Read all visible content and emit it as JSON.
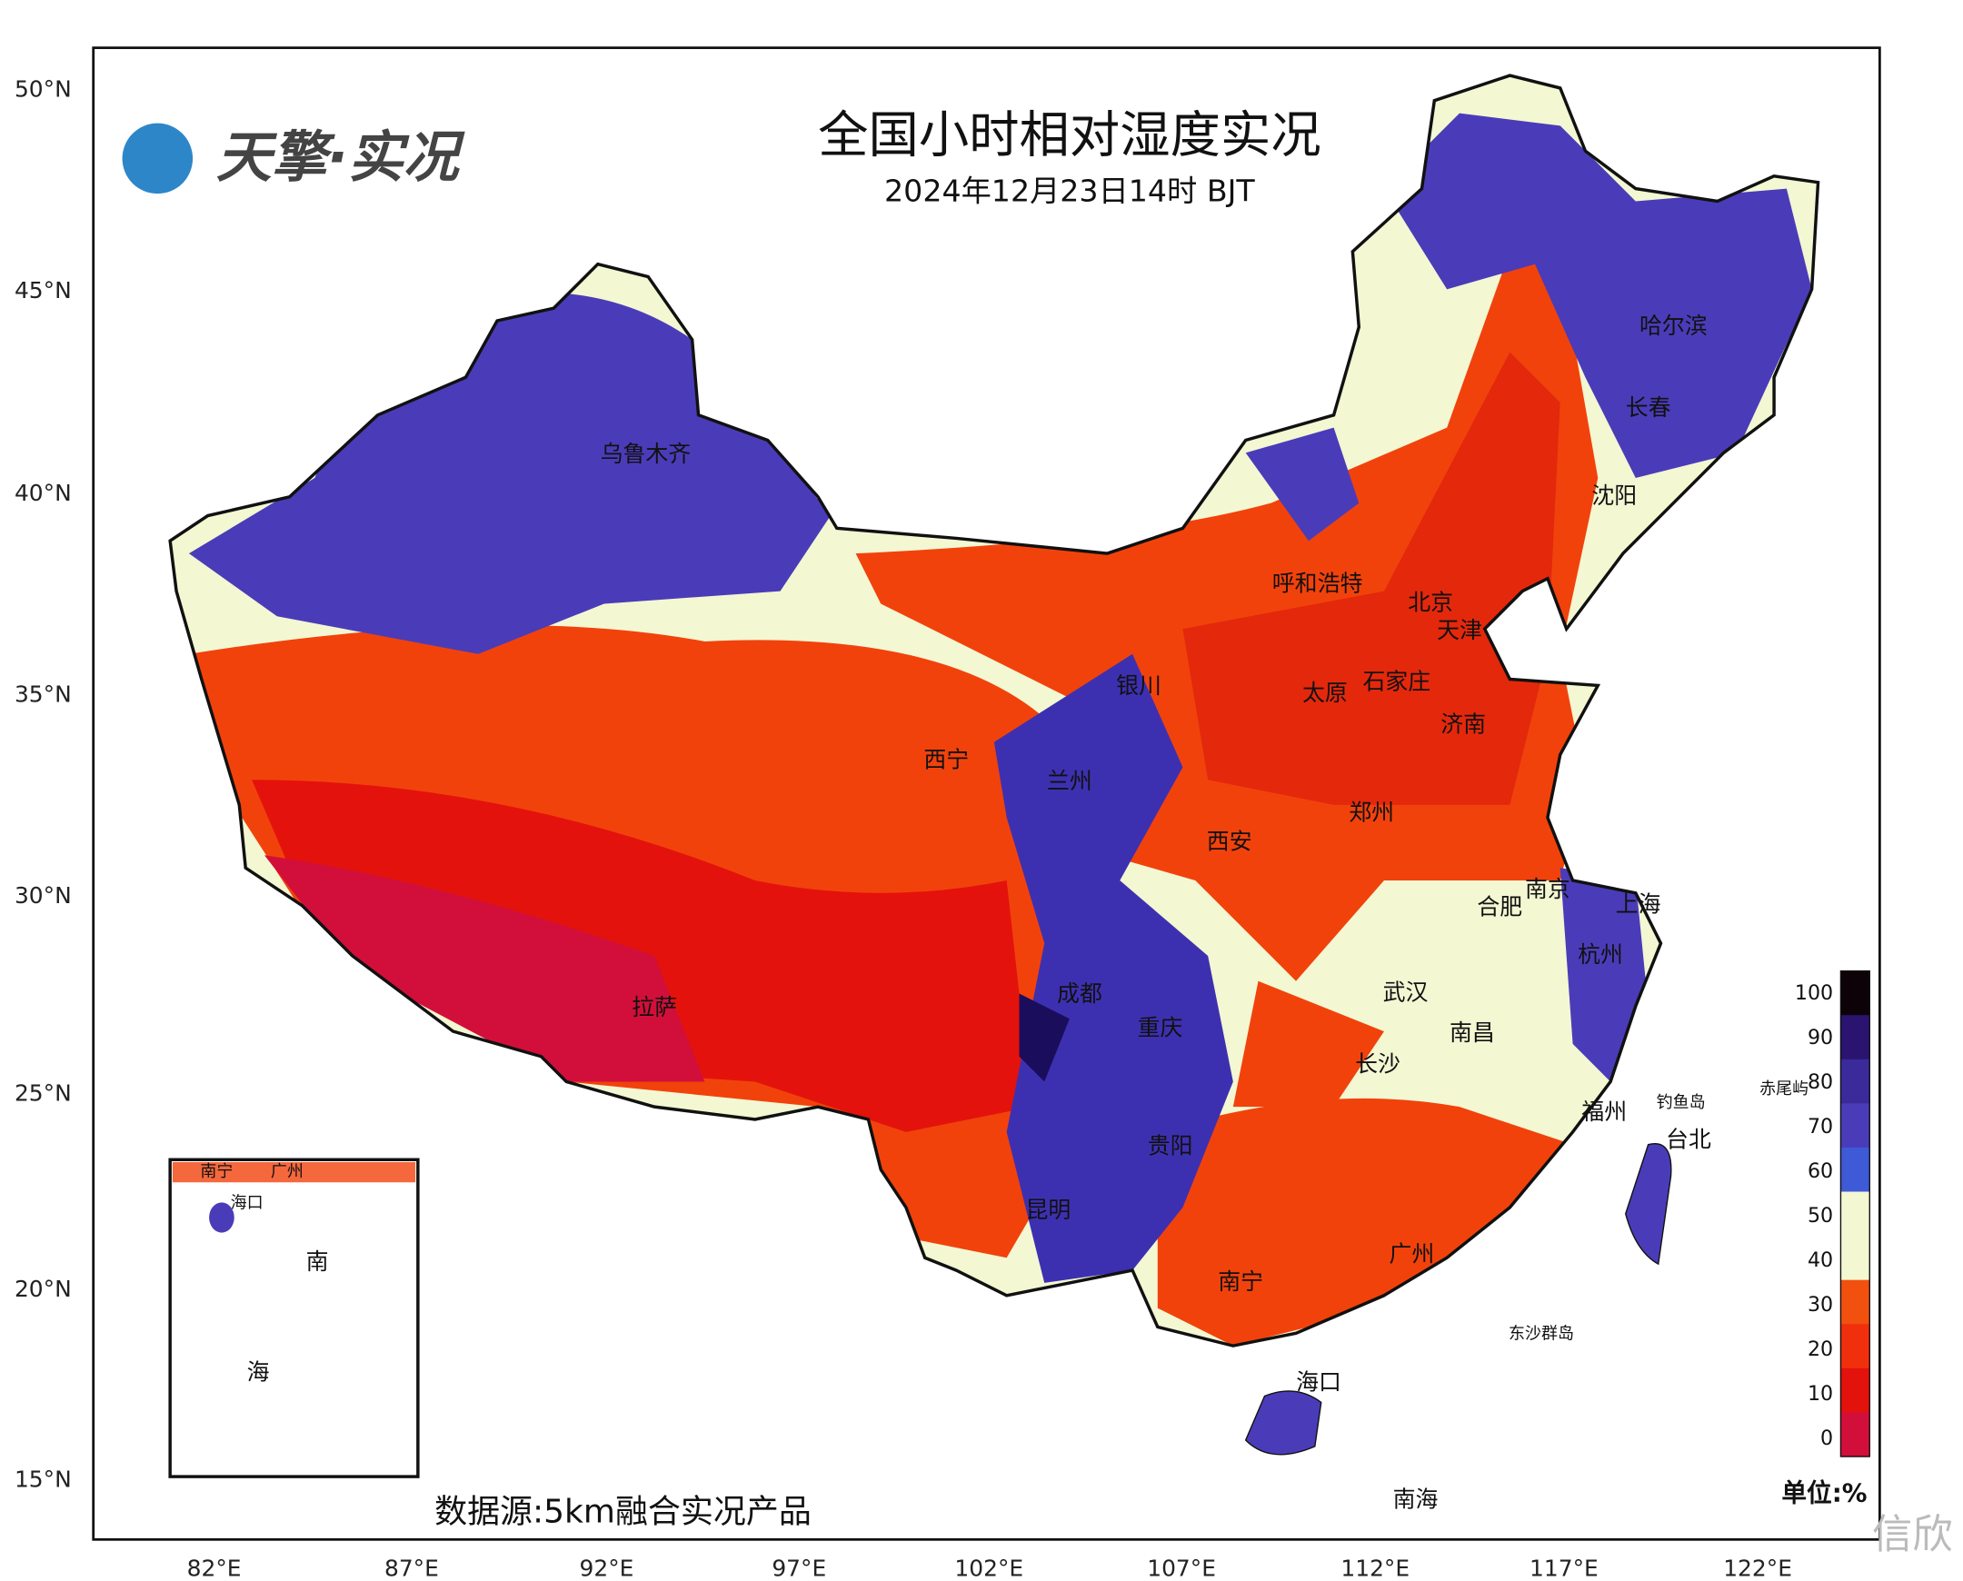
{
  "header": {
    "logo": "天擎·实况",
    "title": "全国小时相对湿度实况",
    "subtitle": "2024年12月23日14时 BJT"
  },
  "axes": {
    "latitudes": [
      "50°N",
      "45°N",
      "40°N",
      "35°N",
      "30°N",
      "25°N",
      "20°N",
      "15°N"
    ],
    "longitudes": [
      "82°E",
      "87°E",
      "92°E",
      "97°E",
      "102°E",
      "107°E",
      "112°E",
      "117°E",
      "122°E"
    ]
  },
  "cities": [
    "乌鲁木齐",
    "哈尔滨",
    "长春",
    "沈阳",
    "呼和浩特",
    "北京",
    "天津",
    "银川",
    "石家庄",
    "太原",
    "济南",
    "西宁",
    "兰州",
    "郑州",
    "西安",
    "南京",
    "合肥",
    "上海",
    "杭州",
    "武汉",
    "成都",
    "拉萨",
    "重庆",
    "南昌",
    "长沙",
    "福州",
    "钓鱼岛",
    "赤尾屿",
    "台北",
    "贵阳",
    "昆明",
    "广州",
    "南宁",
    "东沙群岛",
    "海口",
    "南海"
  ],
  "inset": {
    "labels": [
      "南宁",
      "广州",
      "海口",
      "南",
      "海"
    ]
  },
  "legend": {
    "ticks": [
      100,
      90,
      80,
      70,
      60,
      50,
      40,
      30,
      20,
      10,
      0
    ],
    "unit": "单位:%"
  },
  "footer": {
    "source": "数据源:5km融合实况产品",
    "watermark": "信欣"
  }
}
